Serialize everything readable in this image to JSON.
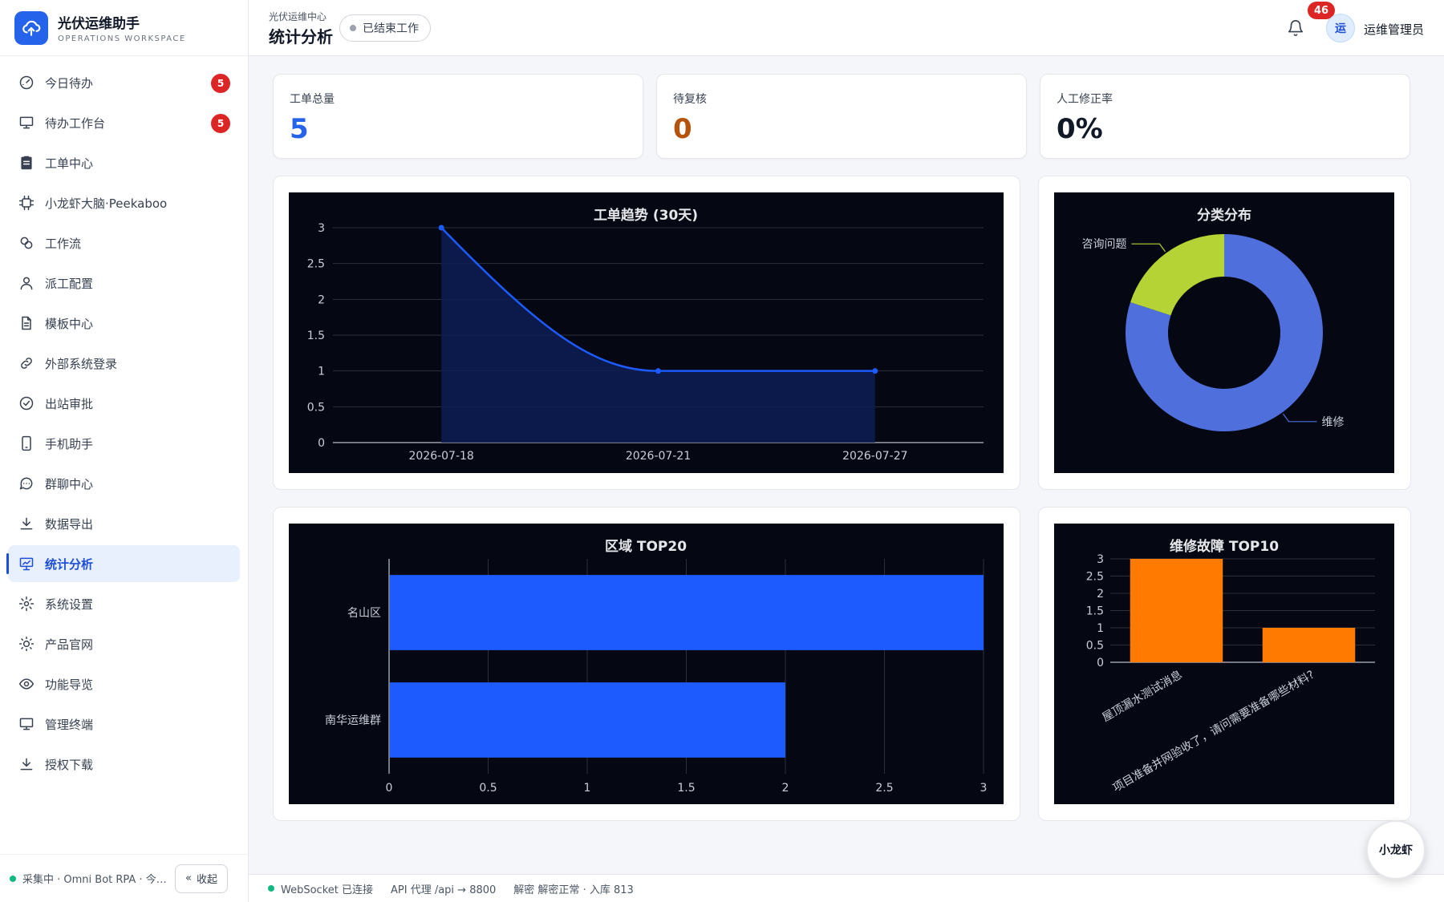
{
  "brand": {
    "title": "光伏运维助手",
    "subtitle": "OPERATIONS WORKSPACE"
  },
  "sidebar": {
    "items": [
      {
        "label": "今日待办",
        "icon": "dashboard-gauge-icon",
        "badge": "5"
      },
      {
        "label": "待办工作台",
        "icon": "monitor-icon",
        "badge": "5"
      },
      {
        "label": "工单中心",
        "icon": "clipboard-icon"
      },
      {
        "label": "小龙虾大脑·Peekaboo",
        "icon": "chip-icon"
      },
      {
        "label": "工作流",
        "icon": "workflow-icon"
      },
      {
        "label": "派工配置",
        "icon": "user-icon"
      },
      {
        "label": "模板中心",
        "icon": "document-icon"
      },
      {
        "label": "外部系统登录",
        "icon": "link-icon"
      },
      {
        "label": "出站审批",
        "icon": "check-circle-icon"
      },
      {
        "label": "手机助手",
        "icon": "phone-icon"
      },
      {
        "label": "群聊中心",
        "icon": "chat-icon"
      },
      {
        "label": "数据导出",
        "icon": "download-icon"
      },
      {
        "label": "统计分析",
        "icon": "presentation-chart-icon",
        "active": true
      },
      {
        "label": "系统设置",
        "icon": "gear-icon"
      },
      {
        "label": "产品官网",
        "icon": "sun-icon"
      },
      {
        "label": "功能导览",
        "icon": "eye-icon"
      },
      {
        "label": "管理终端",
        "icon": "terminal-monitor-icon"
      },
      {
        "label": "授权下载",
        "icon": "download-icon"
      }
    ],
    "footer_status": "采集中 · Omni Bot RPA · 今日...",
    "collapse_label": "收起"
  },
  "header": {
    "breadcrumb": "光伏运维中心",
    "title": "统计分析",
    "status": "已结束工作",
    "notifications": "46",
    "avatar_text": "运",
    "user": "运维管理员"
  },
  "kpis": [
    {
      "label": "工单总量",
      "value": "5",
      "color": "#2563eb"
    },
    {
      "label": "待复核",
      "value": "0",
      "color": "#b45309"
    },
    {
      "label": "人工修正率",
      "value": "0%",
      "color": "#111827"
    }
  ],
  "chart_data": [
    {
      "type": "line",
      "title": "工单趋势 (30天)",
      "x": [
        "2026-07-18",
        "2026-07-21",
        "2026-07-27"
      ],
      "values": [
        3,
        1,
        1
      ],
      "ylim": [
        0,
        3
      ],
      "yticks": [
        0,
        0.5,
        1,
        1.5,
        2,
        2.5,
        3
      ],
      "area": true,
      "smooth": true,
      "grid": true,
      "color": "#1d5bff"
    },
    {
      "type": "pie",
      "title": "分类分布",
      "donut": true,
      "labels": [
        "维修",
        "咨询问题"
      ],
      "values": [
        4,
        1
      ],
      "colors": [
        "#4f6fdc",
        "#b5d334"
      ]
    },
    {
      "type": "bar",
      "orientation": "horizontal",
      "title": "区域 TOP20",
      "categories": [
        "名山区",
        "南华运维群"
      ],
      "values": [
        3,
        2
      ],
      "xlim": [
        0,
        3
      ],
      "xticks": [
        0,
        0.5,
        1,
        1.5,
        2,
        2.5,
        3
      ],
      "color": "#1d5bff"
    },
    {
      "type": "bar",
      "title": "维修故障 TOP10",
      "categories": [
        "屋顶漏水测试消息",
        "项目准备并网验收了，请问需要准备哪些材料?"
      ],
      "values": [
        3,
        1
      ],
      "ylim": [
        0,
        3
      ],
      "yticks": [
        0,
        0.5,
        1,
        1.5,
        2,
        2.5,
        3
      ],
      "color": "#ff7a00"
    }
  ],
  "footer": {
    "websocket": "WebSocket 已连接",
    "proxy": "API 代理 /api → 8800",
    "decrypt": "解密 解密正常 · 入库 813"
  },
  "fab": {
    "label": "小龙虾"
  }
}
